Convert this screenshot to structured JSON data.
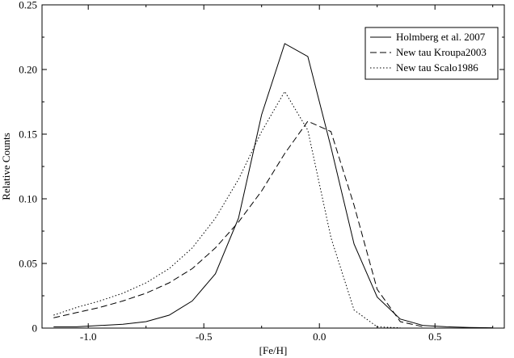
{
  "chart_data": {
    "type": "line",
    "title": "",
    "xlabel": "[Fe/H]",
    "ylabel": "Relative Counts",
    "xlim": [
      -1.2,
      0.8
    ],
    "ylim": [
      0,
      0.25
    ],
    "x_ticks": [
      -1.0,
      -0.5,
      0.0,
      0.5
    ],
    "x_tick_labels": [
      "-1.0",
      "-0.5",
      "0.0",
      "0.5"
    ],
    "y_ticks": [
      0,
      0.05,
      0.1,
      0.15,
      0.2,
      0.25
    ],
    "y_tick_labels": [
      "0",
      "0.05",
      "0.10",
      "0.15",
      "0.20",
      "0.25"
    ],
    "grid": false,
    "legend_position": "top-right",
    "series": [
      {
        "name": "Holmberg et al. 2007",
        "style": "solid",
        "x": [
          -1.15,
          -1.05,
          -0.95,
          -0.85,
          -0.75,
          -0.65,
          -0.55,
          -0.45,
          -0.35,
          -0.25,
          -0.15,
          -0.05,
          0.05,
          0.15,
          0.25,
          0.35,
          0.45,
          0.55,
          0.65,
          0.75
        ],
        "y": [
          0.001,
          0.001,
          0.002,
          0.003,
          0.005,
          0.01,
          0.021,
          0.042,
          0.085,
          0.165,
          0.22,
          0.21,
          0.14,
          0.065,
          0.024,
          0.007,
          0.002,
          0.001,
          0.0005,
          0.0002
        ]
      },
      {
        "name": "New tau Kroupa2003",
        "style": "dashed",
        "x": [
          -1.15,
          -1.05,
          -0.95,
          -0.85,
          -0.75,
          -0.65,
          -0.55,
          -0.45,
          -0.35,
          -0.25,
          -0.15,
          -0.05,
          0.05,
          0.15,
          0.25,
          0.35,
          0.45
        ],
        "y": [
          0.008,
          0.012,
          0.016,
          0.021,
          0.027,
          0.035,
          0.046,
          0.062,
          0.082,
          0.106,
          0.135,
          0.16,
          0.152,
          0.095,
          0.03,
          0.005,
          0.001
        ]
      },
      {
        "name": "New tau Scalo1986",
        "style": "dotted",
        "x": [
          -1.15,
          -1.05,
          -0.95,
          -0.85,
          -0.75,
          -0.65,
          -0.55,
          -0.45,
          -0.35,
          -0.25,
          -0.15,
          -0.05,
          0.05,
          0.15,
          0.25,
          0.35
        ],
        "y": [
          0.01,
          0.016,
          0.021,
          0.027,
          0.035,
          0.046,
          0.062,
          0.085,
          0.115,
          0.152,
          0.183,
          0.153,
          0.07,
          0.014,
          0.001,
          0.0002
        ]
      }
    ]
  }
}
